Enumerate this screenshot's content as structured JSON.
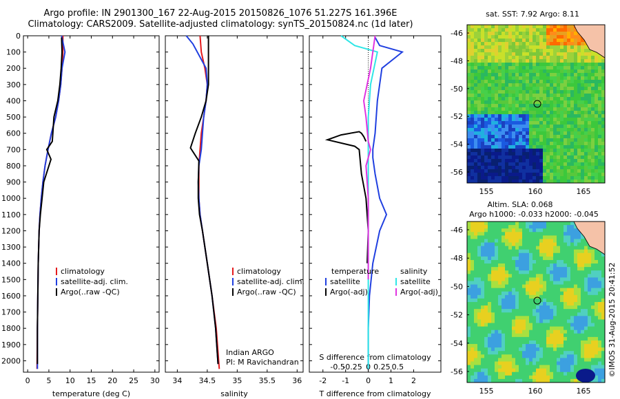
{
  "header": {
    "line1": "Argo profile: IN 2901300_167 22-Aug-2015 20150826_1076 51.227S 161.396E",
    "line2": "Climatology: CARS2009. Satellite-adjusted climatology: synTS_20150824.nc (1d later)"
  },
  "colors": {
    "climatology": "#e41a1c",
    "satellite": "#1f3fe0",
    "argo": "#000000",
    "satellite_s": "#2ee6e6",
    "argo_s": "#e033e0"
  },
  "chart_data": [
    {
      "type": "line",
      "xlabel": "temperature (deg C)",
      "ylabel": "",
      "xlim": [
        -1,
        31
      ],
      "ylim": [
        2070,
        0
      ],
      "xticks": [
        0,
        5,
        10,
        15,
        20,
        25,
        30
      ],
      "yticks": [
        0,
        100,
        200,
        300,
        400,
        500,
        600,
        700,
        800,
        900,
        1000,
        1100,
        1200,
        1300,
        1400,
        1500,
        1600,
        1700,
        1800,
        1900,
        2000
      ],
      "legend": [
        "climatology",
        "satellite-adj. clim.",
        "Argo(..raw -QC)"
      ],
      "series": [
        {
          "name": "climatology",
          "color": "#e41a1c",
          "x": [
            8.3,
            8.3,
            8.1,
            7.8,
            7.3,
            6.6,
            5.6,
            4.8,
            4.1,
            3.6,
            3.2,
            2.9,
            2.7,
            2.5,
            2.4,
            2.3,
            2.2
          ],
          "y": [
            0,
            100,
            200,
            300,
            400,
            500,
            600,
            700,
            800,
            900,
            1000,
            1100,
            1200,
            1400,
            1600,
            1800,
            2050
          ]
        },
        {
          "name": "satellite-adj. clim.",
          "color": "#1f3fe0",
          "x": [
            8.0,
            8.8,
            8.1,
            7.8,
            7.3,
            6.6,
            5.6,
            4.8,
            4.1,
            3.6,
            3.2,
            2.9,
            2.7,
            2.5,
            2.4,
            2.3,
            2.3
          ],
          "y": [
            0,
            100,
            200,
            300,
            400,
            500,
            600,
            700,
            800,
            900,
            1000,
            1100,
            1200,
            1400,
            1600,
            1800,
            2050
          ]
        },
        {
          "name": "Argo(..raw -QC)",
          "color": "#000000",
          "x": [
            8.0,
            8.1,
            7.9,
            7.6,
            7.1,
            6.2,
            5.8,
            4.5,
            5.5,
            3.8,
            3.4,
            3.0,
            2.7,
            2.5,
            2.4,
            2.3,
            2.3
          ],
          "y": [
            10,
            100,
            200,
            300,
            400,
            500,
            650,
            700,
            760,
            900,
            1000,
            1100,
            1200,
            1400,
            1600,
            1800,
            2020
          ]
        }
      ]
    },
    {
      "type": "line",
      "xlabel": "salinity",
      "ylabel": "",
      "xlim": [
        33.8,
        36.1
      ],
      "ylim": [
        2070,
        0
      ],
      "xticks": [
        34,
        34.5,
        35,
        35.5,
        36
      ],
      "legend": [
        "climatology",
        "satellite-adj. clim.",
        "Argo(..raw -QC)"
      ],
      "annotations": [
        "Indian ARGO",
        "PI: M Ravichandran"
      ],
      "series": [
        {
          "name": "climatology",
          "color": "#e41a1c",
          "x": [
            34.38,
            34.4,
            34.46,
            34.5,
            34.48,
            34.44,
            34.4,
            34.38,
            34.36,
            34.36,
            34.36,
            34.38,
            34.42,
            34.5,
            34.58,
            34.65,
            34.7
          ],
          "y": [
            0,
            100,
            200,
            300,
            400,
            500,
            600,
            700,
            800,
            900,
            1000,
            1100,
            1200,
            1400,
            1600,
            1800,
            2050
          ]
        },
        {
          "name": "satellite-adj. clim.",
          "color": "#1f3fe0",
          "x": [
            34.15,
            34.26,
            34.48,
            34.5,
            34.48,
            34.44,
            34.42,
            34.4,
            34.36,
            34.35,
            34.36,
            34.38,
            34.42,
            34.5,
            34.58,
            34.64,
            34.68
          ],
          "y": [
            0,
            50,
            200,
            300,
            400,
            500,
            600,
            700,
            800,
            900,
            1000,
            1100,
            1200,
            1400,
            1600,
            1800,
            2020
          ]
        },
        {
          "name": "Argo(..raw -QC)",
          "color": "#000000",
          "x": [
            34.52,
            34.52,
            34.52,
            34.52,
            34.48,
            34.4,
            34.3,
            34.22,
            34.36,
            34.35,
            34.35,
            34.37,
            34.42,
            34.5,
            34.58,
            34.64,
            34.68
          ],
          "y": [
            0,
            100,
            200,
            300,
            400,
            500,
            600,
            690,
            770,
            900,
            1000,
            1100,
            1200,
            1400,
            1600,
            1800,
            2020
          ]
        }
      ]
    },
    {
      "type": "line",
      "xlabel": "T difference from climatology",
      "xlabel2": "S difference from climatology",
      "xlim": [
        -2.6,
        3.2
      ],
      "ylim": [
        2070,
        0
      ],
      "xticks": [
        -2,
        -1,
        0,
        1,
        2
      ],
      "xticks2": [
        "-0.5",
        "-0.25",
        "0",
        "0.25",
        "0.5"
      ],
      "legend_groups": [
        {
          "title": "temperature",
          "items": [
            "satellite",
            "Argo(-adj)"
          ]
        },
        {
          "title": "salinity",
          "items": [
            "satellite",
            "Argo(-adj)"
          ]
        }
      ],
      "series": [
        {
          "name": "satellite",
          "color": "#1f3fe0",
          "x": [
            0.3,
            0.5,
            1.5,
            0.6,
            0.4,
            0.3,
            0.2,
            0.2,
            0.3,
            0.5,
            0.8,
            0.5,
            0.2,
            0.05,
            0.0,
            0.0,
            0.0
          ],
          "y": [
            10,
            60,
            100,
            200,
            400,
            600,
            700,
            750,
            850,
            1000,
            1100,
            1200,
            1400,
            1600,
            1800,
            1900,
            2050
          ]
        },
        {
          "name": "Argo(-adj)",
          "color": "#000000",
          "x": [
            -0.1,
            -0.2,
            -0.3,
            -0.4,
            -1.2,
            -1.8,
            -0.6,
            -0.4,
            -0.3,
            -0.1,
            0.0,
            -0.05
          ],
          "y": [
            650,
            620,
            600,
            590,
            610,
            640,
            680,
            700,
            850,
            1000,
            1200,
            1400
          ]
        },
        {
          "name": "satellite",
          "color": "#2ee6e6",
          "x": [
            -1.2,
            -0.6,
            0.4,
            0.1,
            0.0,
            0.0,
            0.0,
            0.0,
            0.0,
            0.0
          ],
          "y": [
            0,
            60,
            100,
            300,
            500,
            700,
            900,
            1200,
            1600,
            2050
          ]
        },
        {
          "name": "Argo(-adj)",
          "color": "#e033e0",
          "x": [
            0.3,
            0.2,
            0.1,
            -0.2,
            -0.1,
            0.0,
            0.1,
            -0.1,
            0.0,
            0.0
          ],
          "y": [
            0,
            100,
            200,
            400,
            500,
            650,
            700,
            800,
            1000,
            1500
          ]
        }
      ]
    }
  ],
  "maps": [
    {
      "title": "sat. SST: 7.92  Argo: 8.11",
      "xticks": [
        "155",
        "160",
        "165"
      ],
      "yticks": [
        "-46",
        "-48",
        "-50",
        "-52",
        "-54",
        "-56"
      ]
    },
    {
      "title1": "Altim. SLA: 0.068",
      "title2": "Argo h1000: -0.033  h2000: -0.045",
      "xticks": [
        "155",
        "160",
        "165"
      ],
      "yticks": [
        "-46",
        "-48",
        "-50",
        "-52",
        "-54",
        "-56"
      ]
    }
  ],
  "footer": {
    "credit": "©IMOS 31-Aug-2015 20:41:52"
  }
}
